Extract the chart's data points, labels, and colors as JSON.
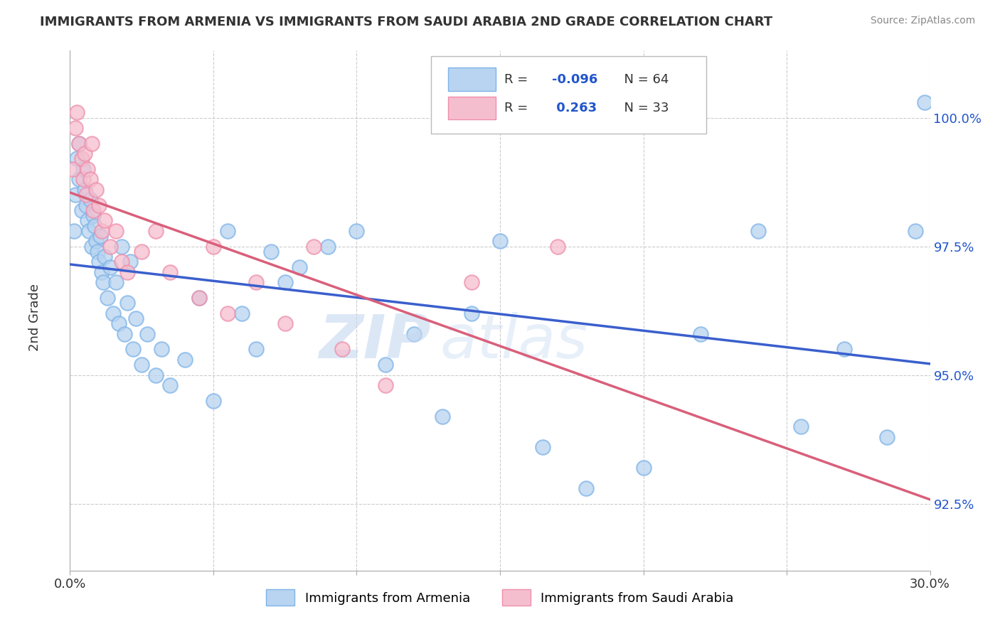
{
  "title": "IMMIGRANTS FROM ARMENIA VS IMMIGRANTS FROM SAUDI ARABIA 2ND GRADE CORRELATION CHART",
  "source": "Source: ZipAtlas.com",
  "ylabel": "2nd Grade",
  "y_ticks": [
    92.5,
    95.0,
    97.5,
    100.0
  ],
  "y_tick_labels": [
    "92.5%",
    "95.0%",
    "97.5%",
    "100.0%"
  ],
  "xlim": [
    0.0,
    30.0
  ],
  "ylim": [
    91.2,
    101.3
  ],
  "blue_color": "#b8d4f0",
  "pink_color": "#f5bece",
  "blue_edge": "#7fb3e8",
  "pink_edge": "#ee8fab",
  "trend_blue": "#3a5fcd",
  "trend_pink": "#d95f7a",
  "watermark_zip": "ZIP",
  "watermark_atlas": "atlas",
  "legend_r1": "R = -0.096",
  "legend_n1": "N = 64",
  "legend_r2": "R =  0.263",
  "legend_n2": "N = 33",
  "r_value_color": "#2255cc",
  "legend_label1": "Immigrants from Armenia",
  "legend_label2": "Immigrants from Saudi Arabia",
  "armenia_x": [
    0.15,
    0.2,
    0.25,
    0.3,
    0.3,
    0.4,
    0.45,
    0.5,
    0.55,
    0.6,
    0.65,
    0.7,
    0.75,
    0.8,
    0.85,
    0.9,
    0.95,
    1.0,
    1.05,
    1.1,
    1.15,
    1.2,
    1.3,
    1.4,
    1.5,
    1.6,
    1.7,
    1.8,
    1.9,
    2.0,
    2.1,
    2.2,
    2.3,
    2.5,
    2.7,
    3.0,
    3.2,
    3.5,
    4.0,
    4.5,
    5.0,
    5.5,
    6.0,
    6.5,
    7.0,
    7.5,
    8.0,
    9.0,
    10.0,
    11.0,
    12.0,
    13.0,
    14.0,
    15.0,
    16.5,
    18.0,
    20.0,
    22.0,
    24.0,
    25.5,
    27.0,
    28.5,
    29.5,
    29.8
  ],
  "armenia_y": [
    97.8,
    98.5,
    99.2,
    98.8,
    99.5,
    98.2,
    99.0,
    98.6,
    98.3,
    98.0,
    97.8,
    98.4,
    97.5,
    98.1,
    97.9,
    97.6,
    97.4,
    97.2,
    97.7,
    97.0,
    96.8,
    97.3,
    96.5,
    97.1,
    96.2,
    96.8,
    96.0,
    97.5,
    95.8,
    96.4,
    97.2,
    95.5,
    96.1,
    95.2,
    95.8,
    95.0,
    95.5,
    94.8,
    95.3,
    96.5,
    94.5,
    97.8,
    96.2,
    95.5,
    97.4,
    96.8,
    97.1,
    97.5,
    97.8,
    95.2,
    95.8,
    94.2,
    96.2,
    97.6,
    93.6,
    92.8,
    93.2,
    95.8,
    97.8,
    94.0,
    95.5,
    93.8,
    97.8,
    100.3
  ],
  "saudi_x": [
    0.1,
    0.2,
    0.25,
    0.3,
    0.4,
    0.45,
    0.5,
    0.55,
    0.6,
    0.7,
    0.75,
    0.8,
    0.9,
    1.0,
    1.1,
    1.2,
    1.4,
    1.6,
    1.8,
    2.0,
    2.5,
    3.0,
    3.5,
    4.5,
    5.0,
    5.5,
    6.5,
    7.5,
    8.5,
    9.5,
    11.0,
    14.0,
    17.0
  ],
  "saudi_y": [
    99.0,
    99.8,
    100.1,
    99.5,
    99.2,
    98.8,
    99.3,
    98.5,
    99.0,
    98.8,
    99.5,
    98.2,
    98.6,
    98.3,
    97.8,
    98.0,
    97.5,
    97.8,
    97.2,
    97.0,
    97.4,
    97.8,
    97.0,
    96.5,
    97.5,
    96.2,
    96.8,
    96.0,
    97.5,
    95.5,
    94.8,
    96.8,
    97.5
  ]
}
